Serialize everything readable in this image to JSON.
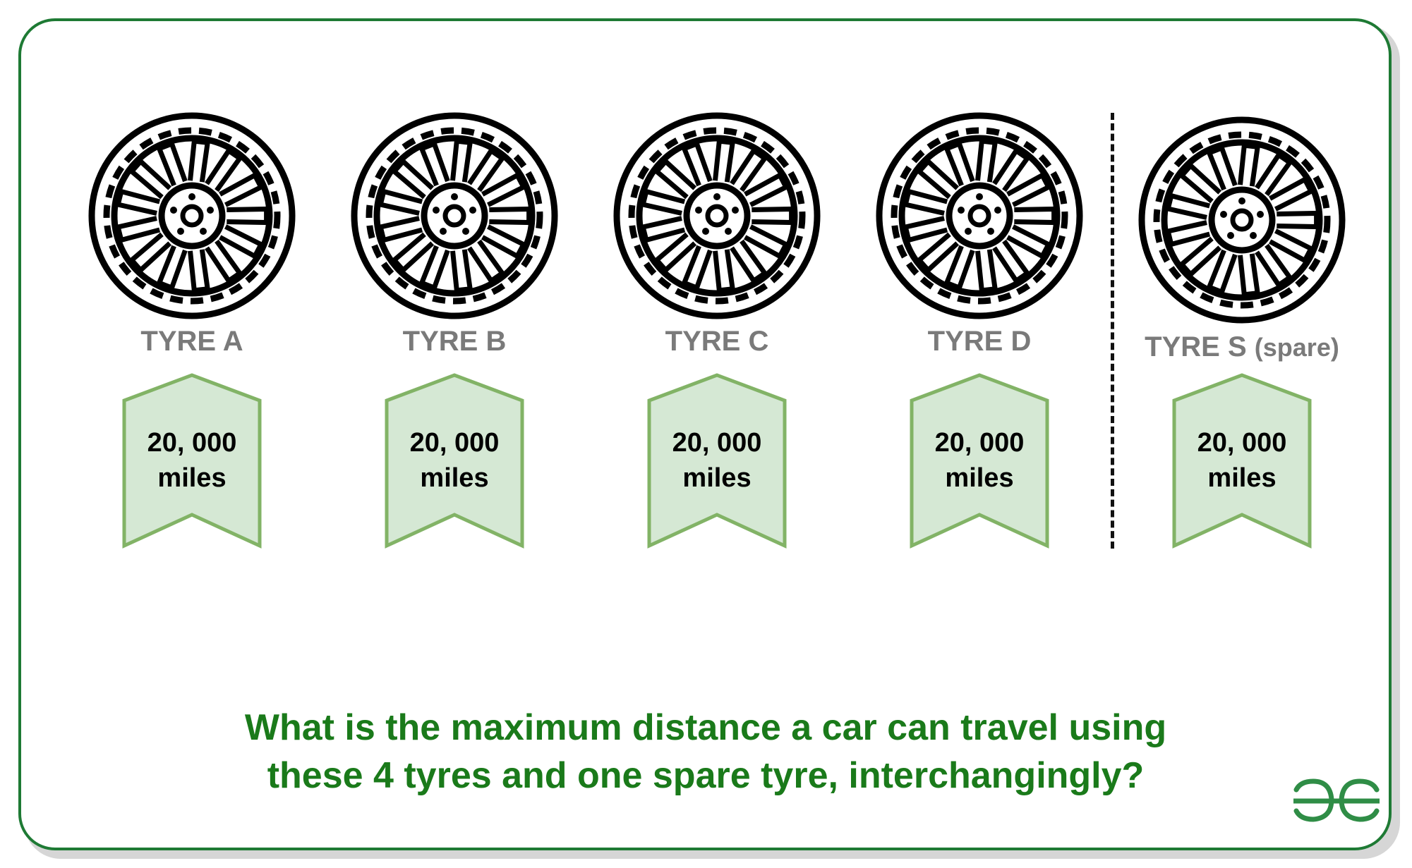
{
  "tyres": [
    {
      "label": "TYRE A",
      "spare_suffix": "",
      "mileage_value": "20, 000",
      "mileage_unit": "miles"
    },
    {
      "label": "TYRE B",
      "spare_suffix": "",
      "mileage_value": "20, 000",
      "mileage_unit": "miles"
    },
    {
      "label": "TYRE C",
      "spare_suffix": "",
      "mileage_value": "20, 000",
      "mileage_unit": "miles"
    },
    {
      "label": "TYRE D",
      "spare_suffix": "",
      "mileage_value": "20, 000",
      "mileage_unit": "miles"
    },
    {
      "label": "TYRE S",
      "spare_suffix": "(spare)",
      "mileage_value": "20, 000",
      "mileage_unit": "miles"
    }
  ],
  "question": {
    "line1": "What is the maximum distance a car can travel using",
    "line2": "these 4 tyres and one spare tyre, interchangingly?"
  },
  "colors": {
    "frame": "#1e7a34",
    "badge_fill": "#d5e8d4",
    "badge_stroke": "#82b366",
    "label_text": "#7a7a7a",
    "question_text": "#1a7a1a",
    "logo": "#2f8d46"
  },
  "icons": {
    "tyre": "wheel-icon",
    "badge": "ribbon-badge",
    "logo": "gfg-logo-icon"
  }
}
